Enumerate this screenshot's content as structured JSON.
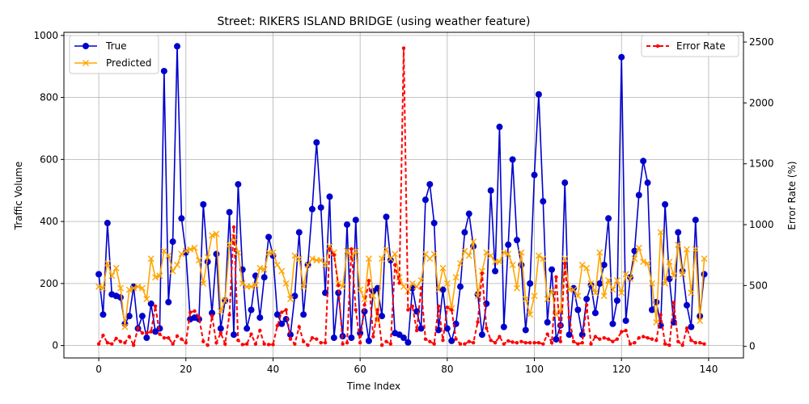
{
  "chart_data": {
    "type": "line",
    "title": "Street: RIKERS ISLAND BRIDGE (using weather feature)",
    "xlabel": "Time Index",
    "ylabel": "Traffic Volume",
    "y2label": "Error Rate (%)",
    "xlim": [
      -8,
      148
    ],
    "ylim": [
      -40,
      1010
    ],
    "y2lim": [
      -95,
      2580
    ],
    "xticks": [
      0,
      20,
      40,
      60,
      80,
      100,
      120,
      140
    ],
    "yticks": [
      0,
      200,
      400,
      600,
      800,
      1000
    ],
    "y2ticks": [
      0,
      500,
      1000,
      1500,
      2000,
      2500
    ],
    "grid": true,
    "legend_left_position": "upper-left",
    "legend_right_position": "upper-right",
    "colors": {
      "true": "#0000cc",
      "predicted": "#ffa500",
      "error": "#ff0000"
    },
    "x": [
      0,
      1,
      2,
      3,
      4,
      5,
      6,
      7,
      8,
      9,
      10,
      11,
      12,
      13,
      14,
      15,
      16,
      17,
      18,
      19,
      20,
      21,
      22,
      23,
      24,
      25,
      26,
      27,
      28,
      29,
      30,
      31,
      32,
      33,
      34,
      35,
      36,
      37,
      38,
      39,
      40,
      41,
      42,
      43,
      44,
      45,
      46,
      47,
      48,
      49,
      50,
      51,
      52,
      53,
      54,
      55,
      56,
      57,
      58,
      59,
      60,
      61,
      62,
      63,
      64,
      65,
      66,
      67,
      68,
      69,
      70,
      71,
      72,
      73,
      74,
      75,
      76,
      77,
      78,
      79,
      80,
      81,
      82,
      83,
      84,
      85,
      86,
      87,
      88,
      89,
      90,
      91,
      92,
      93,
      94,
      95,
      96,
      97,
      98,
      99,
      100,
      101,
      102,
      103,
      104,
      105,
      106,
      107,
      108,
      109,
      110,
      111,
      112,
      113,
      114,
      115,
      116,
      117,
      118,
      119,
      120,
      121,
      122,
      123,
      124,
      125,
      126,
      127,
      128,
      129,
      130,
      131,
      132,
      133,
      134,
      135,
      136,
      137,
      138,
      139
    ],
    "series": [
      {
        "name": "True",
        "values": [
          230,
          100,
          395,
          165,
          160,
          155,
          70,
          95,
          190,
          55,
          95,
          25,
          135,
          45,
          55,
          885,
          140,
          335,
          965,
          410,
          300,
          85,
          90,
          85,
          455,
          270,
          105,
          295,
          55,
          145,
          430,
          35,
          520,
          245,
          55,
          115,
          225,
          90,
          220,
          350,
          290,
          100,
          70,
          85,
          35,
          160,
          365,
          100,
          260,
          440,
          655,
          445,
          170,
          480,
          25,
          170,
          30,
          390,
          25,
          405,
          40,
          110,
          15,
          175,
          185,
          95,
          415,
          275,
          40,
          35,
          25,
          10,
          185,
          110,
          55,
          470,
          520,
          395,
          50,
          180,
          55,
          15,
          70,
          190,
          365,
          425,
          320,
          165,
          35,
          135,
          500,
          240,
          705,
          60,
          325,
          600,
          340,
          260,
          50,
          200,
          550,
          810,
          465,
          75,
          245,
          20,
          65,
          525,
          35,
          185,
          115,
          35,
          150,
          195,
          105,
          200,
          260,
          410,
          70,
          145,
          930,
          80,
          220,
          305,
          485,
          595,
          525,
          115,
          140,
          65,
          455,
          215,
          75,
          365,
          240,
          130,
          60,
          405,
          95,
          230
        ]
      },
      {
        "name": "Predicted",
        "values": [
          190,
          185,
          265,
          225,
          250,
          185,
          60,
          180,
          185,
          190,
          185,
          150,
          280,
          220,
          225,
          305,
          290,
          240,
          260,
          295,
          305,
          310,
          315,
          275,
          200,
          285,
          355,
          360,
          110,
          145,
          325,
          350,
          300,
          200,
          190,
          190,
          195,
          250,
          245,
          300,
          300,
          260,
          240,
          200,
          150,
          290,
          280,
          190,
          260,
          280,
          275,
          275,
          260,
          320,
          300,
          200,
          190,
          305,
          280,
          305,
          180,
          150,
          280,
          160,
          80,
          280,
          310,
          280,
          295,
          220,
          190,
          175,
          200,
          190,
          210,
          295,
          280,
          295,
          180,
          250,
          200,
          120,
          220,
          265,
          305,
          290,
          335,
          160,
          240,
          300,
          290,
          270,
          270,
          300,
          295,
          260,
          185,
          300,
          150,
          100,
          160,
          290,
          280,
          150,
          175,
          100,
          110,
          280,
          180,
          180,
          160,
          260,
          250,
          200,
          170,
          300,
          160,
          210,
          180,
          210,
          170,
          230,
          215,
          280,
          315,
          270,
          265,
          200,
          75,
          365,
          200,
          270,
          225,
          325,
          230,
          310,
          170,
          310,
          80,
          280
        ]
      },
      {
        "name": "Error Rate",
        "values": [
          20,
          90,
          30,
          20,
          65,
          40,
          30,
          80,
          10,
          150,
          110,
          110,
          120,
          330,
          100,
          70,
          70,
          20,
          85,
          60,
          30,
          280,
          290,
          240,
          40,
          10,
          250,
          30,
          110,
          20,
          260,
          980,
          50,
          15,
          20,
          100,
          20,
          130,
          20,
          15,
          15,
          170,
          280,
          300,
          60,
          20,
          160,
          40,
          10,
          70,
          60,
          30,
          30,
          800,
          750,
          500,
          20,
          30,
          800,
          300,
          30,
          340,
          540,
          80,
          300,
          10,
          40,
          20,
          670,
          520,
          2450,
          300,
          330,
          130,
          480,
          60,
          40,
          20,
          330,
          50,
          320,
          300,
          60,
          20,
          20,
          40,
          30,
          200,
          600,
          150,
          50,
          30,
          80,
          20,
          45,
          35,
          30,
          40,
          30,
          30,
          30,
          30,
          20,
          100,
          30,
          570,
          40,
          680,
          240,
          40,
          20,
          30,
          340,
          20,
          80,
          60,
          70,
          60,
          40,
          60,
          120,
          130,
          20,
          30,
          70,
          80,
          70,
          60,
          50,
          260,
          20,
          10,
          360,
          40,
          10,
          150,
          50,
          30,
          30,
          20
        ]
      }
    ]
  }
}
